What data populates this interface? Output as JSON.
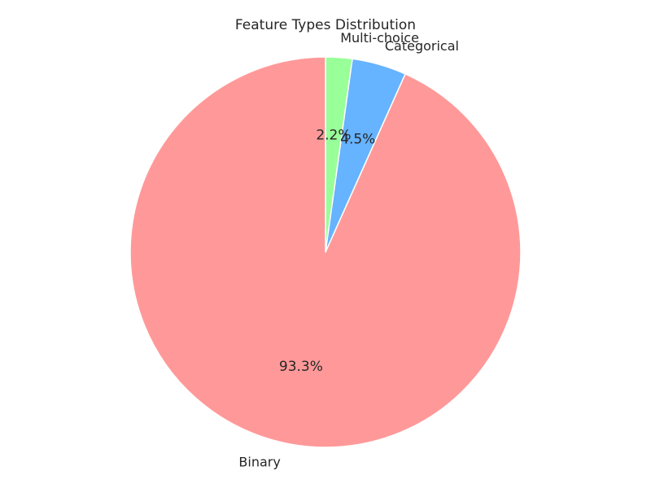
{
  "chart_data": {
    "type": "pie",
    "title": "Feature Types Distribution",
    "start_angle_deg": 90,
    "direction": "clockwise",
    "slices": [
      {
        "label": "Multi-choice",
        "value": 2.2,
        "pct_label": "2.2%",
        "color": "#99ff99"
      },
      {
        "label": "Categorical",
        "value": 4.5,
        "pct_label": "4.5%",
        "color": "#66b3ff"
      },
      {
        "label": "Binary",
        "value": 93.3,
        "pct_label": "93.3%",
        "color": "#ff9999"
      }
    ]
  }
}
